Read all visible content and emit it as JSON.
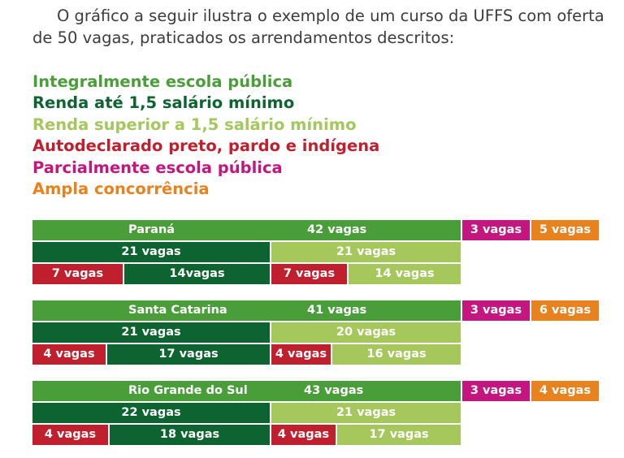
{
  "intro": "O gráfico a seguir ilustra o exemplo de um curso da UFFS com oferta de 50 vagas, praticados os arrendamentos descritos:",
  "legend": [
    {
      "label": "Integralmente escola pública",
      "color": "#4a9e3a"
    },
    {
      "label": "Renda até 1,5 salário mínimo",
      "color": "#0e6430"
    },
    {
      "label": "Renda superior a 1,5 salário mínimo",
      "color": "#a5c75c"
    },
    {
      "label": "Autodeclarado preto, pardo e indígena",
      "color": "#c0202e"
    },
    {
      "label": "Parcialmente escola pública",
      "color": "#c3167f"
    },
    {
      "label": "Ampla concorrência",
      "color": "#e8821e"
    }
  ],
  "states": [
    {
      "name": "Paraná",
      "integral": "42 vagas",
      "parcial": "3 vagas",
      "ampla": "5 vagas",
      "renda_ate": "21 vagas",
      "renda_sup": "21 vagas",
      "ppi_ate": "7 vagas",
      "outros_ate": "14vagas",
      "ppi_sup": "7 vagas",
      "outros_sup": "14 vagas"
    },
    {
      "name": "Santa Catarina",
      "integral": "41 vagas",
      "parcial": "3 vagas",
      "ampla": "6 vagas",
      "renda_ate": "21 vagas",
      "renda_sup": "20 vagas",
      "ppi_ate": "4 vagas",
      "outros_ate": "17 vagas",
      "ppi_sup": "4 vagas",
      "outros_sup": "16 vagas"
    },
    {
      "name": "Rio Grande do Sul",
      "integral": "43 vagas",
      "parcial": "3 vagas",
      "ampla": "4 vagas",
      "renda_ate": "22 vagas",
      "renda_sup": "21 vagas",
      "ppi_ate": "4 vagas",
      "outros_ate": "18 vagas",
      "ppi_sup": "4 vagas",
      "outros_sup": "17 vagas"
    }
  ]
}
